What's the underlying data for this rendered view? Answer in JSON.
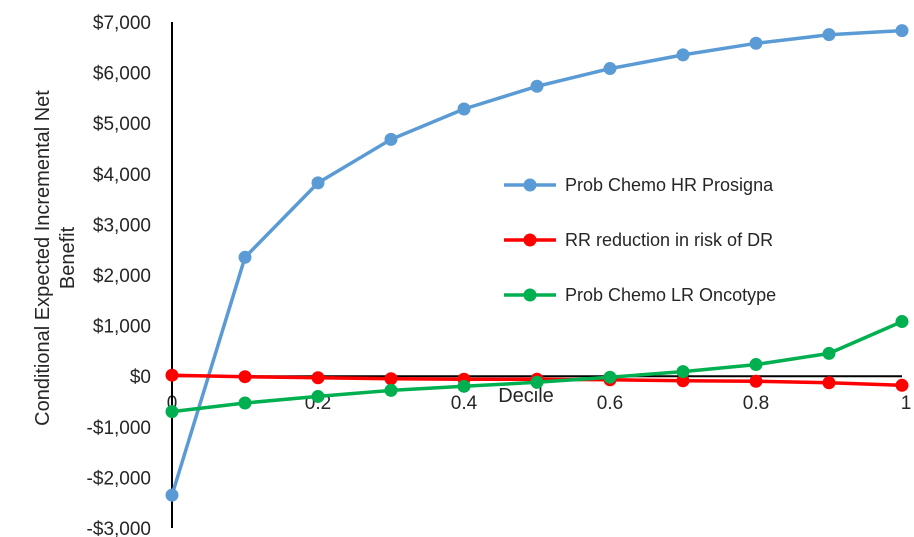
{
  "chart_data": {
    "type": "line",
    "title": "",
    "xlabel": "Decile",
    "ylabel": [
      "Conditional Expected Incremental Net",
      "Benefit"
    ],
    "xlim": [
      0,
      1
    ],
    "ylim": [
      -3000,
      7000
    ],
    "x_ticks": [
      0,
      0.2,
      0.4,
      0.6,
      0.8,
      1
    ],
    "x_tick_labels": [
      "0",
      "0.2",
      "0.4",
      "0.6",
      "0.8",
      "1"
    ],
    "y_ticks": [
      -3000,
      -2000,
      -1000,
      0,
      1000,
      2000,
      3000,
      4000,
      5000,
      6000,
      7000
    ],
    "y_tick_labels": [
      "-$3,000",
      "-$2,000",
      "-$1,000",
      "$0",
      "$1,000",
      "$2,000",
      "$3,000",
      "$4,000",
      "$5,000",
      "$6,000",
      "$7,000"
    ],
    "grid": false,
    "legend_position": "right",
    "x": [
      0,
      0.1,
      0.2,
      0.3,
      0.4,
      0.5,
      0.6,
      0.7,
      0.8,
      0.9,
      1
    ],
    "series": [
      {
        "name": "Prob Chemo HR Prosigna",
        "color": "#5b9bd5",
        "values": [
          -2350,
          2350,
          3820,
          4680,
          5280,
          5730,
          6080,
          6350,
          6580,
          6750,
          6830
        ]
      },
      {
        "name": "RR reduction in risk of DR",
        "color": "#ff0000",
        "values": [
          20,
          -10,
          -30,
          -50,
          -60,
          -60,
          -70,
          -90,
          -100,
          -130,
          -180
        ]
      },
      {
        "name": "Prob Chemo LR Oncotype",
        "color": "#00b050",
        "values": [
          -700,
          -530,
          -400,
          -280,
          -200,
          -120,
          -20,
          90,
          230,
          450,
          1080
        ]
      }
    ]
  }
}
